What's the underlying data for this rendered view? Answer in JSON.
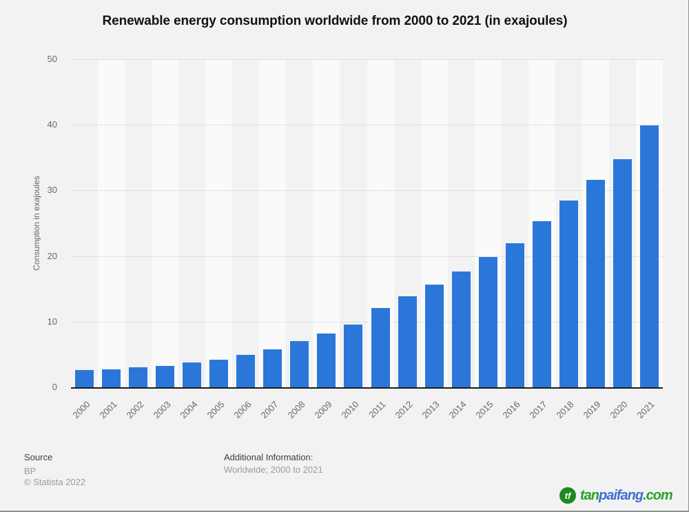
{
  "chart_data": {
    "type": "bar",
    "title": "Renewable energy consumption worldwide from 2000 to 2021 (in exajoules)",
    "xlabel": "",
    "ylabel": "Consumption in exajoules",
    "categories": [
      "2000",
      "2001",
      "2002",
      "2003",
      "2004",
      "2005",
      "2006",
      "2007",
      "2008",
      "2009",
      "2010",
      "2011",
      "2012",
      "2013",
      "2014",
      "2015",
      "2016",
      "2017",
      "2018",
      "2019",
      "2020",
      "2021"
    ],
    "values": [
      2.6,
      2.7,
      3.0,
      3.3,
      3.8,
      4.2,
      4.9,
      5.8,
      7.0,
      8.2,
      9.6,
      12.1,
      13.9,
      15.7,
      17.6,
      19.9,
      22.0,
      25.3,
      28.5,
      31.6,
      34.8,
      39.9
    ],
    "ylim": [
      0,
      50
    ],
    "y_ticks": [
      0,
      10,
      20,
      30,
      40,
      50
    ],
    "grid": "horizontal-dotted",
    "legend": "none",
    "bar_color": "#2b77d9",
    "stripe_color": "#fafafa",
    "background_color": "#f2f2f2"
  },
  "footer": {
    "source_label": "Source",
    "source_value": "BP",
    "copyright": "© Statista 2022",
    "additional_label": "Additional Information:",
    "additional_value": "Worldwide; 2000 to 2021"
  },
  "logo": {
    "icon": "tf-leaf-circle-icon",
    "icon_text": "tf",
    "icon_bg_color": "#1d8a1d",
    "parts": [
      {
        "text": "tan",
        "color": "#27a127"
      },
      {
        "text": "paifang",
        "color": "#3e6fd1"
      },
      {
        "text": ".com",
        "color": "#27a127"
      }
    ]
  }
}
